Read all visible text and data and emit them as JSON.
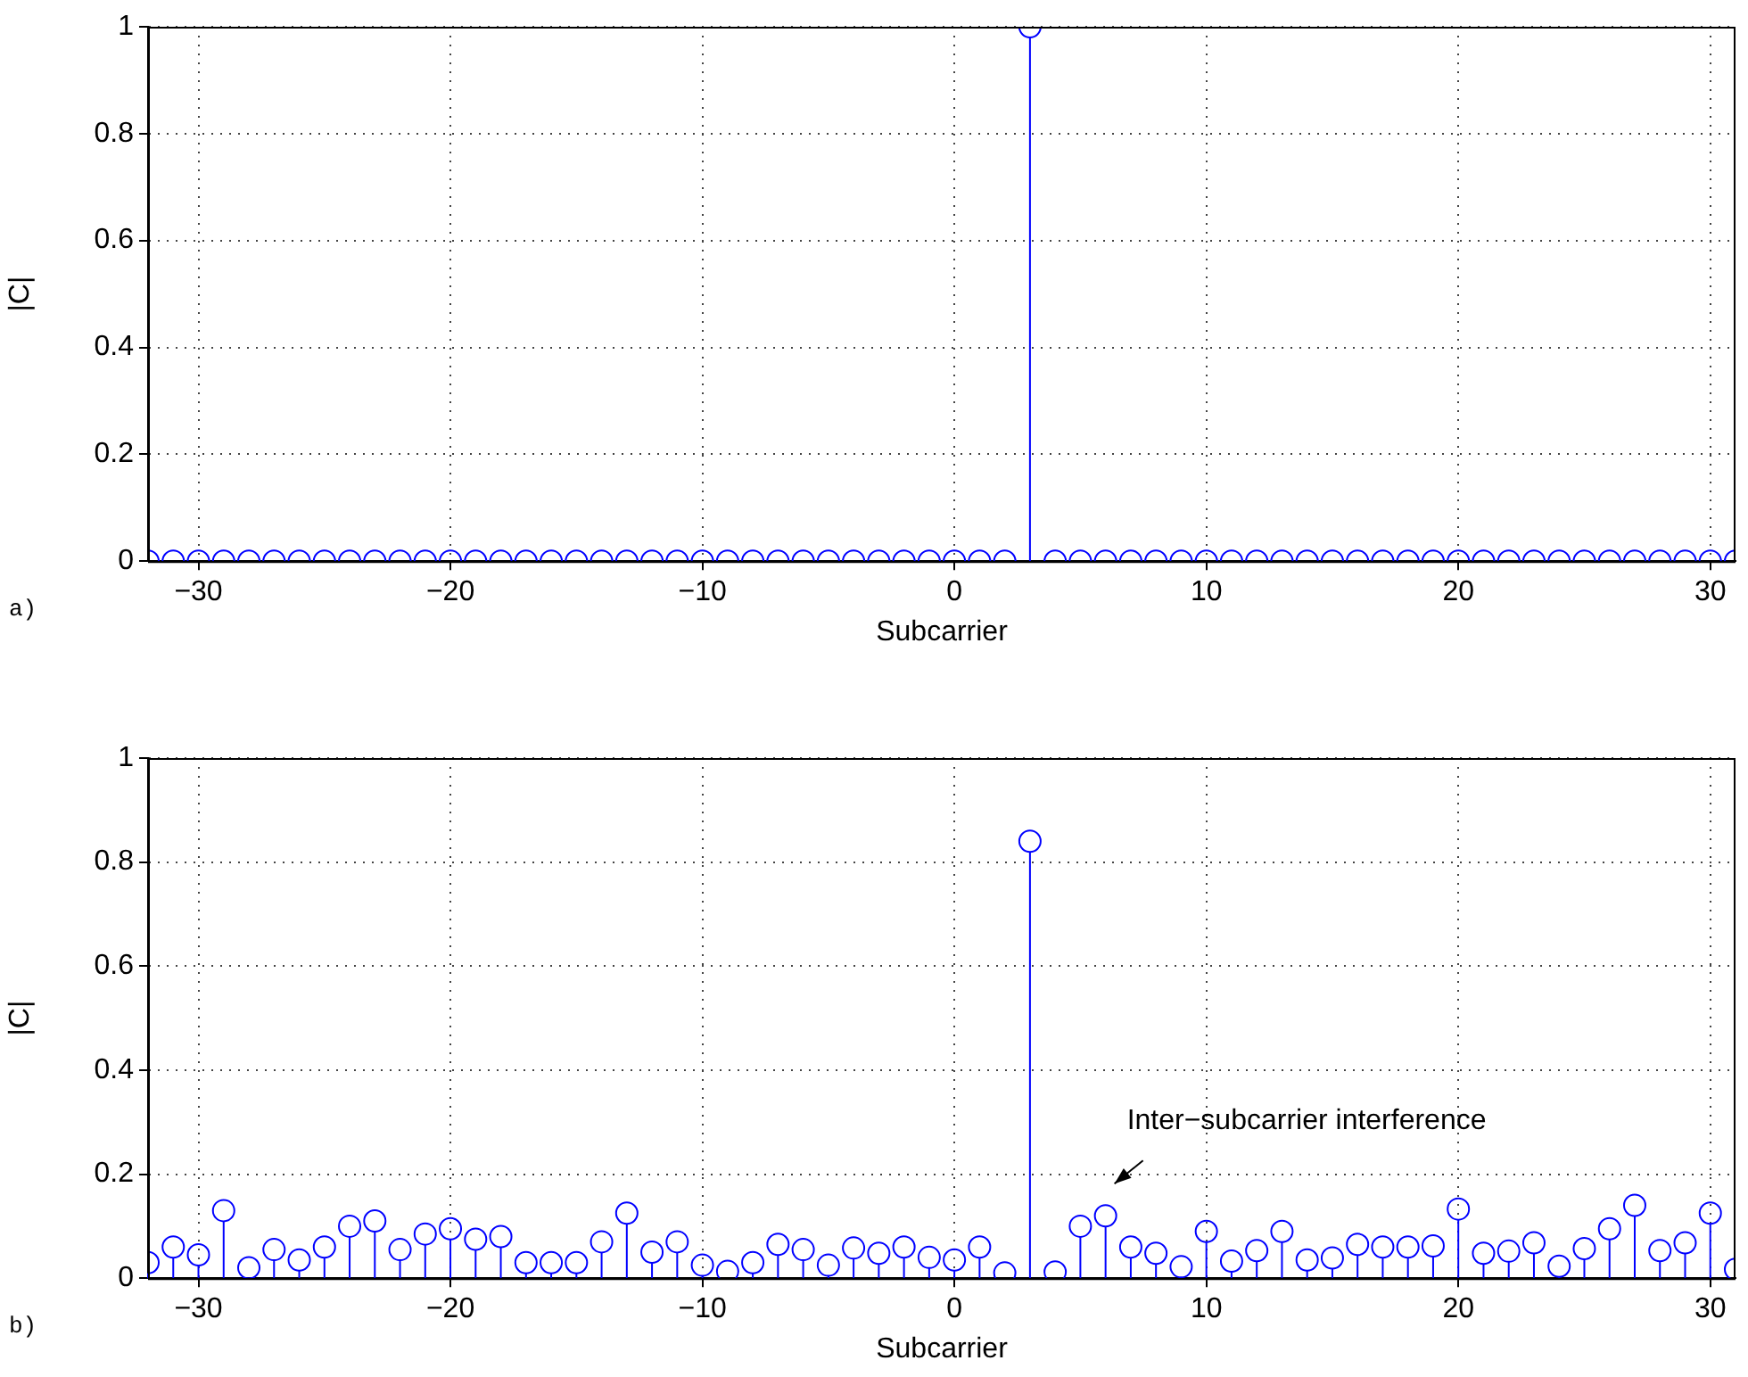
{
  "chart_data": [
    {
      "type": "lollipop",
      "xlabel": "Subcarrier",
      "ylabel": "|C|",
      "annotations": [
        "a)"
      ],
      "x": [
        -32,
        -31,
        -30,
        -29,
        -28,
        -27,
        -26,
        -25,
        -24,
        -23,
        -22,
        -21,
        -20,
        -19,
        -18,
        -17,
        -16,
        -15,
        -14,
        -13,
        -12,
        -11,
        -10,
        -9,
        -8,
        -7,
        -6,
        -5,
        -4,
        -3,
        -2,
        -1,
        0,
        1,
        2,
        3,
        4,
        5,
        6,
        7,
        8,
        9,
        10,
        11,
        12,
        13,
        14,
        15,
        16,
        17,
        18,
        19,
        20,
        21,
        22,
        23,
        24,
        25,
        26,
        27,
        28,
        29,
        30,
        31
      ],
      "series": [
        {
          "color": "#0000ff",
          "values": [
            0,
            0,
            0,
            0,
            0,
            0,
            0,
            0,
            0,
            0,
            0,
            0,
            0,
            0,
            0,
            0,
            0,
            0,
            0,
            0,
            0,
            0,
            0,
            0,
            0,
            0,
            0,
            0,
            0,
            0,
            0,
            0,
            0,
            0,
            0,
            1,
            0,
            0,
            0,
            0,
            0,
            0,
            0,
            0,
            0,
            0,
            0,
            0,
            0,
            0,
            0,
            0,
            0,
            0,
            0,
            0,
            0,
            0,
            0,
            0,
            0,
            0,
            0,
            0
          ]
        }
      ],
      "xlim": [
        -32,
        31
      ],
      "xticks": [
        {
          "value": -30,
          "label": "−30"
        },
        {
          "value": -20,
          "label": "−20"
        },
        {
          "value": -10,
          "label": "−10"
        },
        0,
        10,
        20,
        30
      ],
      "ylim": [
        0,
        1
      ],
      "yticks": [
        0,
        0.2,
        0.4,
        0.6,
        0.8,
        1
      ],
      "grid": true,
      "legend": false,
      "marker": "circle"
    },
    {
      "type": "lollipop",
      "xlabel": "Subcarrier",
      "ylabel": "|C|",
      "annotations": [
        "b)",
        {
          "text": "Inter−subcarrier interference",
          "x": 6,
          "y": 0.12
        }
      ],
      "x": [
        -32,
        -31,
        -30,
        -29,
        -28,
        -27,
        -26,
        -25,
        -24,
        -23,
        -22,
        -21,
        -20,
        -19,
        -18,
        -17,
        -16,
        -15,
        -14,
        -13,
        -12,
        -11,
        -10,
        -9,
        -8,
        -7,
        -6,
        -5,
        -4,
        -3,
        -2,
        -1,
        0,
        1,
        2,
        3,
        4,
        5,
        6,
        7,
        8,
        9,
        10,
        11,
        12,
        13,
        14,
        15,
        16,
        17,
        18,
        19,
        20,
        21,
        22,
        23,
        24,
        25,
        26,
        27,
        28,
        29,
        30,
        31
      ],
      "series": [
        {
          "color": "#0000ff",
          "values": [
            0.03,
            0.06,
            0.045,
            0.13,
            0.02,
            0.055,
            0.035,
            0.06,
            0.1,
            0.11,
            0.055,
            0.085,
            0.095,
            0.075,
            0.08,
            0.03,
            0.03,
            0.03,
            0.07,
            0.125,
            0.05,
            0.07,
            0.025,
            0.013,
            0.03,
            0.065,
            0.055,
            0.025,
            0.058,
            0.048,
            0.06,
            0.04,
            0.035,
            0.06,
            0.01,
            0.84,
            0.012,
            0.1,
            0.12,
            0.06,
            0.048,
            0.022,
            0.09,
            0.033,
            0.053,
            0.09,
            0.035,
            0.039,
            0.065,
            0.06,
            0.06,
            0.062,
            0.133,
            0.048,
            0.052,
            0.068,
            0.023,
            0.057,
            0.095,
            0.14,
            0.053,
            0.068,
            0.125,
            0.017
          ]
        }
      ],
      "xlim": [
        -32,
        31
      ],
      "xticks": [
        {
          "value": -30,
          "label": "−30"
        },
        {
          "value": -20,
          "label": "−20"
        },
        {
          "value": -10,
          "label": "−10"
        },
        0,
        10,
        20,
        30
      ],
      "ylim": [
        0,
        1
      ],
      "yticks": [
        0,
        0.2,
        0.4,
        0.6,
        0.8,
        1
      ],
      "grid": true,
      "legend": false,
      "marker": "circle"
    }
  ]
}
